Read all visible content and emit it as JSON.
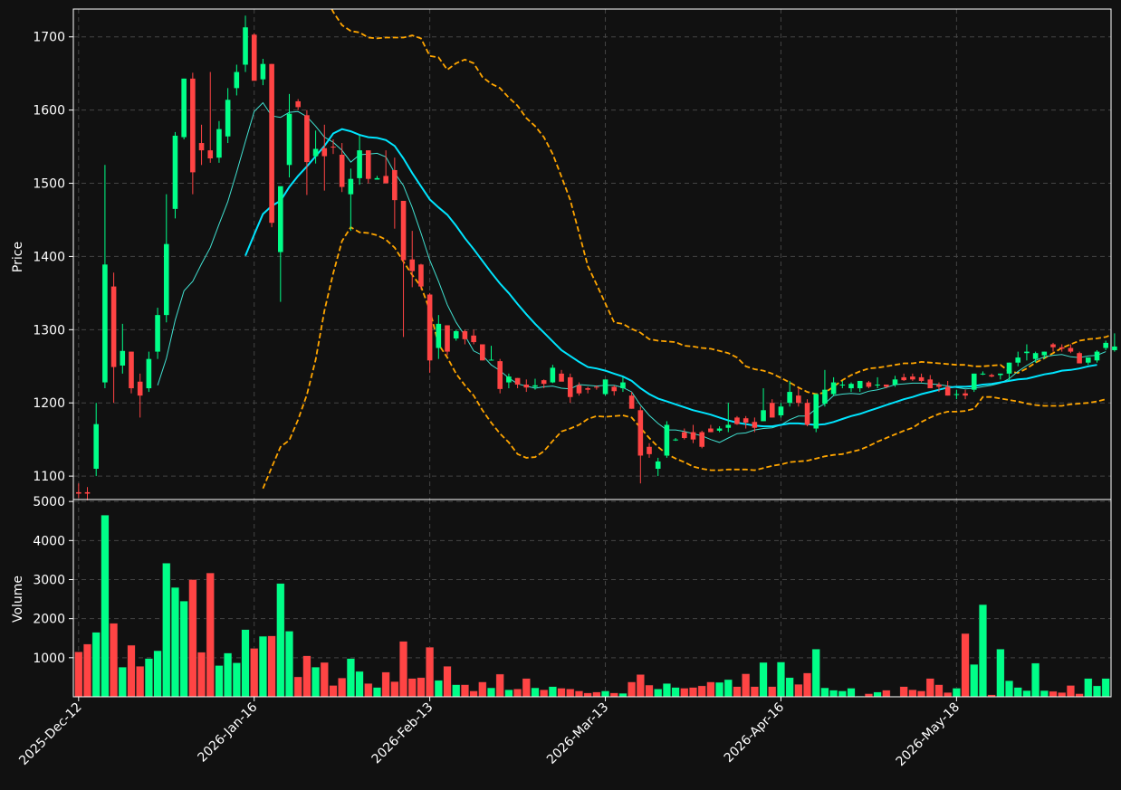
{
  "colors": {
    "background": "#111111",
    "up": "#00ff88",
    "down": "#ff4444",
    "ma_fast": "#40e0d0",
    "ma_slow": "#00e5ff",
    "bands": "#ffa500",
    "grid": "#444444",
    "axis": "#ffffff"
  },
  "chart_data": {
    "type": "candlestick",
    "grid": true,
    "price_panel": {
      "ylabel": "Price",
      "ylim": [
        1068,
        1738
      ],
      "yticks": [
        1100,
        1200,
        1300,
        1400,
        1500,
        1600,
        1700
      ],
      "ytick_labels": [
        "1100",
        "1200",
        "1300",
        "1400",
        "1500",
        "1600",
        "1700"
      ]
    },
    "volume_panel": {
      "ylabel": "Volume",
      "ylim": [
        0,
        5050
      ],
      "yticks": [
        1000,
        2000,
        3000,
        4000,
        5000
      ],
      "ytick_labels": [
        "1000",
        "2000",
        "3000",
        "4000",
        "5000"
      ]
    },
    "x_range": [
      -0.6,
      117.6
    ],
    "xticks": [
      0,
      20,
      40,
      60,
      80,
      100
    ],
    "xtick_labels": [
      "2025-Dec-12",
      "2026-Jan-16",
      "2026-Feb-13",
      "2026-Mar-13",
      "2026-Apr-16",
      "2026-May-18"
    ],
    "ohlc": [
      [
        1078,
        1090,
        1070,
        1076
      ],
      [
        1078,
        1085,
        1067,
        1076
      ],
      [
        1110,
        1200,
        1100,
        1171
      ],
      [
        1228,
        1525,
        1220,
        1389
      ],
      [
        1359,
        1378,
        1200,
        1249
      ],
      [
        1251,
        1308,
        1240,
        1271
      ],
      [
        1270,
        1270,
        1213,
        1220
      ],
      [
        1229,
        1240,
        1180,
        1210
      ],
      [
        1220,
        1270,
        1215,
        1260
      ],
      [
        1270,
        1330,
        1260,
        1320
      ],
      [
        1320,
        1485,
        1310,
        1417
      ],
      [
        1465,
        1570,
        1452,
        1565
      ],
      [
        1563,
        1643,
        1560,
        1643
      ],
      [
        1643,
        1651,
        1485,
        1515
      ],
      [
        1555,
        1580,
        1525,
        1545
      ],
      [
        1545,
        1652,
        1528,
        1534
      ],
      [
        1535,
        1585,
        1528,
        1574
      ],
      [
        1564,
        1630,
        1555,
        1614
      ],
      [
        1630,
        1662,
        1620,
        1652
      ],
      [
        1662,
        1729,
        1652,
        1713
      ],
      [
        1703,
        1705,
        1640,
        1640
      ],
      [
        1642,
        1670,
        1634,
        1663
      ],
      [
        1663,
        1663,
        1440,
        1446
      ],
      [
        1406,
        1495,
        1338,
        1496
      ],
      [
        1525,
        1622,
        1508,
        1595
      ],
      [
        1612,
        1615,
        1600,
        1604
      ],
      [
        1593,
        1600,
        1484,
        1529
      ],
      [
        1537,
        1572,
        1527,
        1547
      ],
      [
        1548,
        1580,
        1490,
        1537
      ],
      [
        1550,
        1560,
        1540,
        1549
      ],
      [
        1539,
        1555,
        1488,
        1495
      ],
      [
        1485,
        1520,
        1435,
        1506
      ],
      [
        1507,
        1565,
        1498,
        1545
      ],
      [
        1545,
        1545,
        1500,
        1506
      ],
      [
        1505,
        1510,
        1505,
        1507
      ],
      [
        1510,
        1545,
        1500,
        1500
      ],
      [
        1518,
        1535,
        1438,
        1477
      ],
      [
        1476,
        1476,
        1290,
        1395
      ],
      [
        1396,
        1435,
        1358,
        1380
      ],
      [
        1389,
        1390,
        1355,
        1359
      ],
      [
        1348,
        1350,
        1241,
        1258
      ],
      [
        1275,
        1320,
        1260,
        1308
      ],
      [
        1306,
        1306,
        1265,
        1270
      ],
      [
        1288,
        1300,
        1285,
        1298
      ],
      [
        1298,
        1300,
        1280,
        1287
      ],
      [
        1292,
        1300,
        1280,
        1283
      ],
      [
        1280,
        1280,
        1258,
        1258
      ],
      [
        1258,
        1278,
        1258,
        1259
      ],
      [
        1257,
        1260,
        1213,
        1219
      ],
      [
        1228,
        1240,
        1220,
        1236
      ],
      [
        1234,
        1234,
        1220,
        1225
      ],
      [
        1225,
        1232,
        1215,
        1221
      ],
      [
        1222,
        1233,
        1218,
        1224
      ],
      [
        1231,
        1232,
        1220,
        1226
      ],
      [
        1228,
        1252,
        1227,
        1248
      ],
      [
        1240,
        1245,
        1230,
        1229
      ],
      [
        1235,
        1240,
        1200,
        1208
      ],
      [
        1224,
        1228,
        1210,
        1213
      ],
      [
        1220,
        1222,
        1213,
        1218
      ],
      [
        1222,
        1224,
        1218,
        1221
      ],
      [
        1212,
        1232,
        1210,
        1232
      ],
      [
        1222,
        1224,
        1210,
        1216
      ],
      [
        1220,
        1235,
        1215,
        1228
      ],
      [
        1210,
        1215,
        1192,
        1192
      ],
      [
        1190,
        1195,
        1090,
        1128
      ],
      [
        1140,
        1145,
        1125,
        1130
      ],
      [
        1110,
        1125,
        1100,
        1120
      ],
      [
        1128,
        1175,
        1125,
        1170
      ],
      [
        1150,
        1152,
        1148,
        1150
      ],
      [
        1160,
        1165,
        1150,
        1152
      ],
      [
        1160,
        1170,
        1145,
        1150
      ],
      [
        1160,
        1162,
        1138,
        1140
      ],
      [
        1165,
        1170,
        1160,
        1160
      ],
      [
        1162,
        1168,
        1160,
        1165
      ],
      [
        1166,
        1200,
        1160,
        1170
      ],
      [
        1180,
        1182,
        1170,
        1171
      ],
      [
        1179,
        1182,
        1165,
        1173
      ],
      [
        1174,
        1180,
        1160,
        1166
      ],
      [
        1175,
        1220,
        1175,
        1190
      ],
      [
        1200,
        1205,
        1180,
        1180
      ],
      [
        1183,
        1200,
        1180,
        1195
      ],
      [
        1200,
        1230,
        1195,
        1215
      ],
      [
        1210,
        1220,
        1195,
        1200
      ],
      [
        1200,
        1205,
        1168,
        1170
      ],
      [
        1165,
        1212,
        1160,
        1212
      ],
      [
        1199,
        1245,
        1195,
        1218
      ],
      [
        1212,
        1235,
        1210,
        1228
      ],
      [
        1225,
        1230,
        1220,
        1225
      ],
      [
        1220,
        1228,
        1215,
        1226
      ],
      [
        1220,
        1230,
        1215,
        1230
      ],
      [
        1228,
        1230,
        1220,
        1222
      ],
      [
        1224,
        1235,
        1220,
        1225
      ],
      [
        1225,
        1225,
        1220,
        1222
      ],
      [
        1225,
        1237,
        1222,
        1232
      ],
      [
        1235,
        1240,
        1230,
        1231
      ],
      [
        1236,
        1240,
        1230,
        1232
      ],
      [
        1235,
        1240,
        1228,
        1230
      ],
      [
        1232,
        1238,
        1225,
        1220
      ],
      [
        1225,
        1228,
        1215,
        1222
      ],
      [
        1222,
        1230,
        1210,
        1210
      ],
      [
        1212,
        1218,
        1205,
        1212
      ],
      [
        1213,
        1218,
        1205,
        1210
      ],
      [
        1218,
        1240,
        1215,
        1240
      ],
      [
        1240,
        1243,
        1238,
        1240
      ],
      [
        1238,
        1240,
        1235,
        1236
      ],
      [
        1238,
        1240,
        1232,
        1240
      ],
      [
        1240,
        1255,
        1230,
        1255
      ],
      [
        1255,
        1270,
        1250,
        1262
      ],
      [
        1268,
        1280,
        1258,
        1270
      ],
      [
        1260,
        1270,
        1255,
        1268
      ],
      [
        1265,
        1270,
        1260,
        1270
      ],
      [
        1280,
        1282,
        1270,
        1276
      ],
      [
        1276,
        1280,
        1270,
        1274
      ],
      [
        1275,
        1280,
        1268,
        1270
      ],
      [
        1268,
        1270,
        1254,
        1254
      ],
      [
        1255,
        1262,
        1252,
        1262
      ],
      [
        1258,
        1272,
        1255,
        1270
      ],
      [
        1275,
        1285,
        1272,
        1282
      ],
      [
        1272,
        1295,
        1270,
        1277
      ]
    ],
    "volume": [
      1150,
      1350,
      1650,
      4650,
      1880,
      760,
      1320,
      780,
      980,
      1180,
      3420,
      2800,
      2450,
      3000,
      1140,
      3170,
      800,
      1120,
      870,
      1720,
      1240,
      1550,
      1560,
      2900,
      1680,
      510,
      1050,
      760,
      880,
      290,
      480,
      980,
      650,
      340,
      240,
      630,
      390,
      1420,
      470,
      490,
      1270,
      420,
      780,
      310,
      310,
      150,
      380,
      230,
      580,
      180,
      200,
      470,
      230,
      180,
      260,
      220,
      200,
      150,
      100,
      120,
      150,
      100,
      90,
      380,
      570,
      300,
      200,
      340,
      240,
      220,
      240,
      280,
      380,
      370,
      440,
      260,
      590,
      260,
      880,
      260,
      890,
      490,
      320,
      610,
      1220,
      230,
      170,
      150,
      220,
      20,
      80,
      120,
      170,
      10,
      260,
      180,
      150,
      470,
      310,
      110,
      220,
      1620,
      830,
      2360,
      50,
      1220,
      410,
      240,
      160,
      860,
      160,
      140,
      110,
      290,
      80,
      470,
      280,
      470
    ],
    "ma_fast": [
      null,
      null,
      null,
      null,
      null,
      null,
      null,
      null,
      null,
      1224,
      1261,
      1313,
      1353,
      1366,
      1390,
      1412,
      1444,
      1475,
      1515,
      1557,
      1598,
      1610,
      1592,
      1590,
      1597,
      1598,
      1591,
      1578,
      1563,
      1556,
      1545,
      1529,
      1539,
      1540,
      1541,
      1536,
      1514,
      1497,
      1467,
      1432,
      1395,
      1366,
      1334,
      1310,
      1292,
      1271,
      1265,
      1252,
      1244,
      1234,
      1226,
      1223,
      1220,
      1222,
      1223,
      1220,
      1219,
      1225,
      1224,
      1223,
      1224,
      1224,
      1221,
      1215,
      1197,
      1183,
      1172,
      1163,
      1163,
      1161,
      1158,
      1155,
      1150,
      1146,
      1152,
      1158,
      1159,
      1163,
      1165,
      1166,
      1170,
      1177,
      1182,
      1182,
      1192,
      1199,
      1210,
      1212,
      1213,
      1212,
      1216,
      1218,
      1221,
      1225,
      1226,
      1227,
      1227,
      1226,
      1225,
      1223,
      1221,
      1219,
      1220,
      1222,
      1224,
      1227,
      1233,
      1243,
      1251,
      1258,
      1263,
      1265,
      1266,
      1263,
      1262,
      1264,
      1265,
      1270
    ],
    "ma_slow": [
      null,
      null,
      null,
      null,
      null,
      null,
      null,
      null,
      null,
      null,
      null,
      null,
      null,
      null,
      null,
      null,
      null,
      null,
      null,
      1401,
      1430,
      1458,
      1469,
      1476,
      1495,
      1510,
      1523,
      1537,
      1551,
      1568,
      1574,
      1571,
      1566,
      1563,
      1562,
      1559,
      1551,
      1534,
      1514,
      1496,
      1478,
      1467,
      1457,
      1442,
      1425,
      1410,
      1394,
      1378,
      1363,
      1350,
      1335,
      1321,
      1308,
      1296,
      1284,
      1272,
      1264,
      1256,
      1249,
      1247,
      1244,
      1240,
      1236,
      1230,
      1220,
      1212,
      1206,
      1202,
      1198,
      1194,
      1190,
      1187,
      1184,
      1180,
      1176,
      1173,
      1171,
      1169,
      1168,
      1168,
      1170,
      1172,
      1172,
      1171,
      1170,
      1171,
      1174,
      1178,
      1182,
      1185,
      1189,
      1193,
      1197,
      1201,
      1205,
      1208,
      1212,
      1215,
      1218,
      1221,
      1222,
      1222,
      1223,
      1225,
      1226,
      1228,
      1230,
      1232,
      1233,
      1236,
      1239,
      1241,
      1244,
      1245,
      1247,
      1250,
      1252
    ],
    "upper_band": [
      null,
      null,
      null,
      null,
      null,
      null,
      null,
      null,
      null,
      null,
      null,
      null,
      null,
      null,
      null,
      null,
      null,
      null,
      null,
      null,
      null,
      null,
      null,
      null,
      null,
      null,
      null,
      null,
      1758,
      1734,
      1716,
      1708,
      1706,
      1699,
      1698,
      1699,
      1699,
      1699,
      1702,
      1698,
      1674,
      1672,
      1655,
      1664,
      1669,
      1664,
      1645,
      1636,
      1630,
      1617,
      1606,
      1589,
      1578,
      1563,
      1540,
      1509,
      1477,
      1432,
      1387,
      1362,
      1336,
      1310,
      1308,
      1301,
      1296,
      1287,
      1285,
      1284,
      1283,
      1278,
      1277,
      1275,
      1274,
      1271,
      1268,
      1262,
      1250,
      1246,
      1244,
      1240,
      1234,
      1228,
      1221,
      1215,
      1212,
      1214,
      1222,
      1231,
      1238,
      1243,
      1247,
      1248,
      1250,
      1252,
      1254,
      1254,
      1256,
      1255,
      1254,
      1253,
      1252,
      1252,
      1250,
      1250,
      1251,
      1252,
      1243,
      1241,
      1247,
      1255,
      1261,
      1268,
      1275,
      1280,
      1285,
      1287,
      1288,
      1290,
      1295,
      1296
    ],
    "lower_band": [
      null,
      null,
      null,
      null,
      null,
      null,
      null,
      null,
      null,
      null,
      null,
      null,
      null,
      null,
      null,
      null,
      null,
      null,
      null,
      null,
      null,
      1083,
      1112,
      1140,
      1149,
      1177,
      1211,
      1259,
      1326,
      1377,
      1421,
      1440,
      1433,
      1432,
      1429,
      1423,
      1412,
      1393,
      1375,
      1359,
      1327,
      1280,
      1262,
      1240,
      1224,
      1210,
      1190,
      1173,
      1158,
      1146,
      1130,
      1125,
      1126,
      1134,
      1148,
      1161,
      1165,
      1170,
      1178,
      1182,
      1181,
      1182,
      1183,
      1180,
      1166,
      1152,
      1140,
      1130,
      1124,
      1119,
      1113,
      1110,
      1108,
      1108,
      1109,
      1109,
      1109,
      1108,
      1111,
      1114,
      1116,
      1119,
      1120,
      1121,
      1124,
      1127,
      1129,
      1130,
      1133,
      1136,
      1141,
      1147,
      1152,
      1157,
      1162,
      1166,
      1174,
      1180,
      1185,
      1188,
      1188,
      1189,
      1192,
      1208,
      1208,
      1206,
      1204,
      1202,
      1199,
      1197,
      1196,
      1196,
      1196,
      1198,
      1199,
      1200,
      1202,
      1205
    ]
  }
}
